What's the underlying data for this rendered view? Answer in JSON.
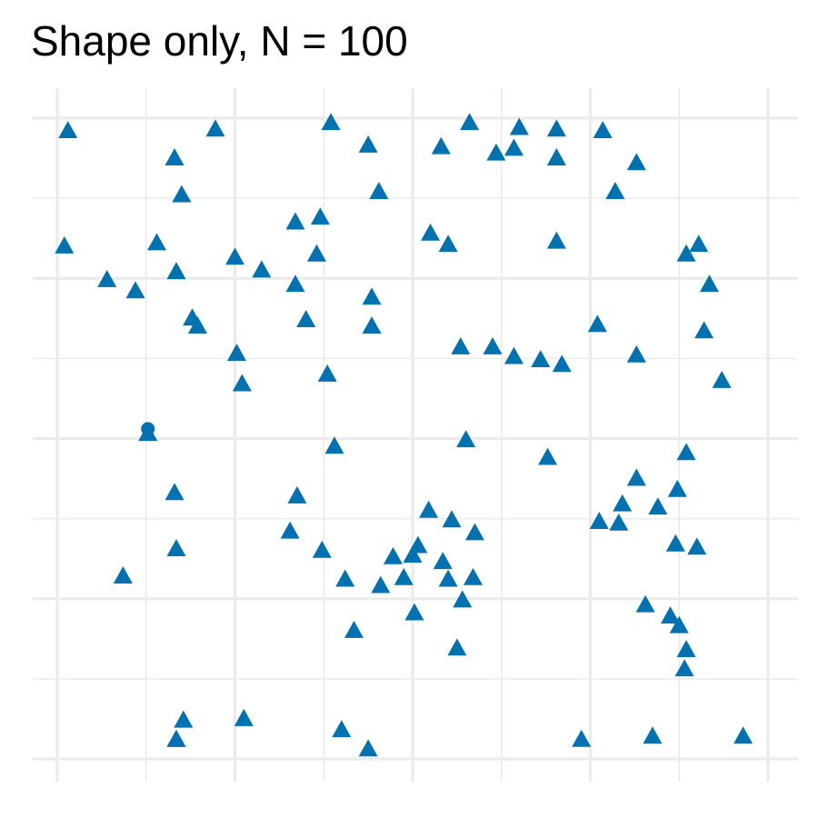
{
  "chart_data": {
    "type": "scatter",
    "title": "Shape only, N = 100",
    "xlabel": "",
    "ylabel": "",
    "xlim": [
      -0.15,
      4.15
    ],
    "ylim": [
      0.0,
      4.0
    ],
    "grid": true,
    "legend": "none",
    "marker_color": "#0072B2",
    "series": [
      {
        "shape": "triangle",
        "points": [
          [
            0.06,
            3.92
          ],
          [
            0.04,
            3.2
          ],
          [
            0.28,
            2.99
          ],
          [
            0.44,
            2.92
          ],
          [
            0.56,
            3.22
          ],
          [
            0.79,
            2.7
          ],
          [
            0.51,
            2.03
          ],
          [
            0.37,
            1.14
          ],
          [
            0.66,
            3.75
          ],
          [
            0.7,
            3.52
          ],
          [
            0.67,
            3.04
          ],
          [
            0.89,
            3.93
          ],
          [
            1.0,
            3.13
          ],
          [
            1.15,
            3.05
          ],
          [
            1.34,
            3.35
          ],
          [
            1.48,
            3.38
          ],
          [
            1.46,
            3.15
          ],
          [
            1.34,
            2.96
          ],
          [
            1.01,
            2.53
          ],
          [
            1.04,
            2.34
          ],
          [
            0.76,
            2.75
          ],
          [
            0.66,
            1.66
          ],
          [
            0.67,
            1.31
          ],
          [
            0.71,
            0.24
          ],
          [
            0.67,
            0.12
          ],
          [
            1.05,
            0.25
          ],
          [
            0.67,
            0.12
          ],
          [
            1.52,
            2.4
          ],
          [
            1.4,
            2.74
          ],
          [
            1.56,
            1.95
          ],
          [
            1.49,
            1.3
          ],
          [
            1.31,
            1.42
          ],
          [
            1.35,
            1.64
          ],
          [
            1.62,
            1.12
          ],
          [
            1.54,
            3.97
          ],
          [
            1.75,
            3.83
          ],
          [
            1.81,
            3.54
          ],
          [
            1.77,
            2.88
          ],
          [
            1.77,
            2.7
          ],
          [
            2.1,
            3.28
          ],
          [
            2.2,
            3.21
          ],
          [
            2.16,
            3.82
          ],
          [
            2.32,
            3.97
          ],
          [
            2.27,
            2.57
          ],
          [
            2.45,
            2.57
          ],
          [
            2.57,
            2.51
          ],
          [
            2.72,
            2.49
          ],
          [
            2.3,
            1.99
          ],
          [
            2.35,
            1.41
          ],
          [
            2.22,
            1.49
          ],
          [
            2.17,
            1.23
          ],
          [
            2.2,
            1.12
          ],
          [
            2.28,
            0.99
          ],
          [
            2.09,
            1.55
          ],
          [
            2.03,
            1.33
          ],
          [
            2.0,
            1.27
          ],
          [
            1.95,
            1.13
          ],
          [
            1.89,
            1.26
          ],
          [
            1.82,
            1.08
          ],
          [
            2.01,
            0.91
          ],
          [
            2.34,
            1.13
          ],
          [
            2.25,
            0.69
          ],
          [
            1.67,
            0.8
          ],
          [
            1.6,
            0.18
          ],
          [
            1.75,
            0.06
          ],
          [
            2.47,
            3.78
          ],
          [
            2.6,
            3.94
          ],
          [
            2.57,
            3.81
          ],
          [
            2.81,
            3.93
          ],
          [
            2.81,
            3.75
          ],
          [
            3.07,
            3.92
          ],
          [
            3.14,
            3.54
          ],
          [
            3.26,
            3.72
          ],
          [
            2.81,
            3.23
          ],
          [
            2.84,
            2.46
          ],
          [
            3.04,
            2.71
          ],
          [
            3.26,
            2.52
          ],
          [
            3.61,
            3.21
          ],
          [
            3.54,
            3.15
          ],
          [
            3.67,
            2.96
          ],
          [
            3.64,
            2.67
          ],
          [
            3.74,
            2.36
          ],
          [
            3.54,
            1.91
          ],
          [
            3.26,
            1.75
          ],
          [
            3.18,
            1.59
          ],
          [
            3.38,
            1.57
          ],
          [
            3.49,
            1.68
          ],
          [
            2.76,
            1.88
          ],
          [
            3.05,
            1.48
          ],
          [
            3.16,
            1.47
          ],
          [
            3.48,
            1.34
          ],
          [
            3.6,
            1.32
          ],
          [
            3.31,
            0.96
          ],
          [
            3.45,
            0.89
          ],
          [
            3.5,
            0.83
          ],
          [
            3.54,
            0.68
          ],
          [
            3.53,
            0.56
          ],
          [
            2.95,
            0.12
          ],
          [
            3.35,
            0.14
          ],
          [
            3.86,
            0.14
          ]
        ]
      },
      {
        "shape": "circle",
        "points": [
          [
            0.51,
            2.06
          ]
        ]
      }
    ]
  }
}
